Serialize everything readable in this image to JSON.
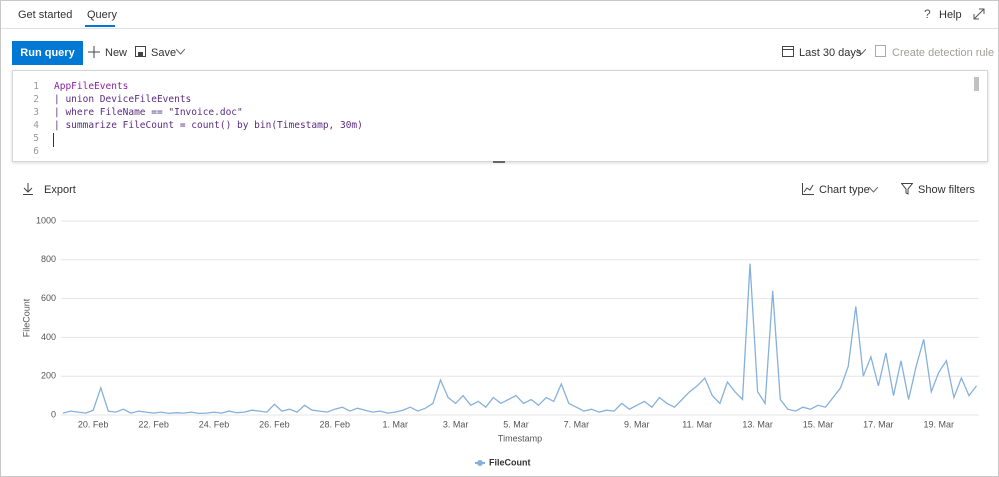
{
  "tabs": {
    "items": [
      "Get started",
      "Query"
    ],
    "help": "Help"
  },
  "toolbar": {
    "run": "Run query",
    "new": "New",
    "save": "Save",
    "time_range": "Last 30 days",
    "detection": "Create detection rule"
  },
  "editor": {
    "line_numbers": [
      1,
      2,
      3,
      4,
      5,
      6
    ],
    "lines": [
      "AppFileEvents",
      "| union DeviceFileEvents",
      "| where FileName == \"Invoice.doc\"",
      "| summarize FileCount = count() by bin(Timestamp, 30m)"
    ]
  },
  "results_toolbar": {
    "export": "Export",
    "chart_type": "Chart type",
    "filters": "Show filters"
  },
  "chart_data": {
    "type": "line",
    "x_label": "Timestamp",
    "y_label": "FileCount",
    "categories": [
      null,
      null,
      null,
      null,
      "20. Feb",
      null,
      null,
      null,
      null,
      null,
      null,
      null,
      "22. Feb",
      null,
      null,
      null,
      null,
      null,
      null,
      null,
      "24. Feb",
      null,
      null,
      null,
      null,
      null,
      null,
      null,
      "26. Feb",
      null,
      null,
      null,
      null,
      null,
      null,
      null,
      "28. Feb",
      null,
      null,
      null,
      null,
      null,
      null,
      null,
      "1. Mar",
      null,
      null,
      null,
      null,
      null,
      null,
      null,
      "3. Mar",
      null,
      null,
      null,
      null,
      null,
      null,
      null,
      "5. Mar",
      null,
      null,
      null,
      null,
      null,
      null,
      null,
      "7. Mar",
      null,
      null,
      null,
      null,
      null,
      null,
      null,
      "9. Mar",
      null,
      null,
      null,
      null,
      null,
      null,
      null,
      "11. Mar",
      null,
      null,
      null,
      null,
      null,
      null,
      null,
      "13. Mar",
      null,
      null,
      null,
      null,
      null,
      null,
      null,
      "15. Mar",
      null,
      null,
      null,
      null,
      null,
      null,
      null,
      "17. Mar",
      null,
      null,
      null,
      null,
      null,
      null,
      null,
      "19. Mar",
      null,
      null,
      null,
      null,
      null
    ],
    "series": [
      {
        "name": "FileCount",
        "color": "#86b1dc",
        "values": [
          10,
          20,
          15,
          10,
          25,
          140,
          20,
          15,
          30,
          10,
          20,
          15,
          10,
          15,
          8,
          12,
          10,
          15,
          8,
          10,
          15,
          10,
          20,
          12,
          15,
          25,
          20,
          15,
          55,
          20,
          30,
          15,
          50,
          25,
          20,
          15,
          30,
          40,
          20,
          35,
          25,
          15,
          20,
          10,
          15,
          25,
          40,
          20,
          35,
          60,
          180,
          90,
          60,
          100,
          50,
          70,
          40,
          90,
          60,
          80,
          100,
          60,
          80,
          50,
          90,
          70,
          160,
          60,
          40,
          20,
          30,
          15,
          25,
          20,
          60,
          30,
          50,
          70,
          40,
          90,
          60,
          40,
          80,
          120,
          150,
          190,
          100,
          60,
          170,
          120,
          80,
          780,
          120,
          60,
          640,
          80,
          30,
          20,
          40,
          30,
          50,
          40,
          90,
          140,
          250,
          560,
          200,
          300,
          150,
          320,
          100,
          280,
          80,
          250,
          390,
          120,
          220,
          280,
          90,
          190,
          100,
          150
        ]
      }
    ],
    "ylim": [
      0,
      1000
    ],
    "yticks": [
      0,
      200,
      400,
      600,
      800,
      1000
    ],
    "grid": true
  }
}
